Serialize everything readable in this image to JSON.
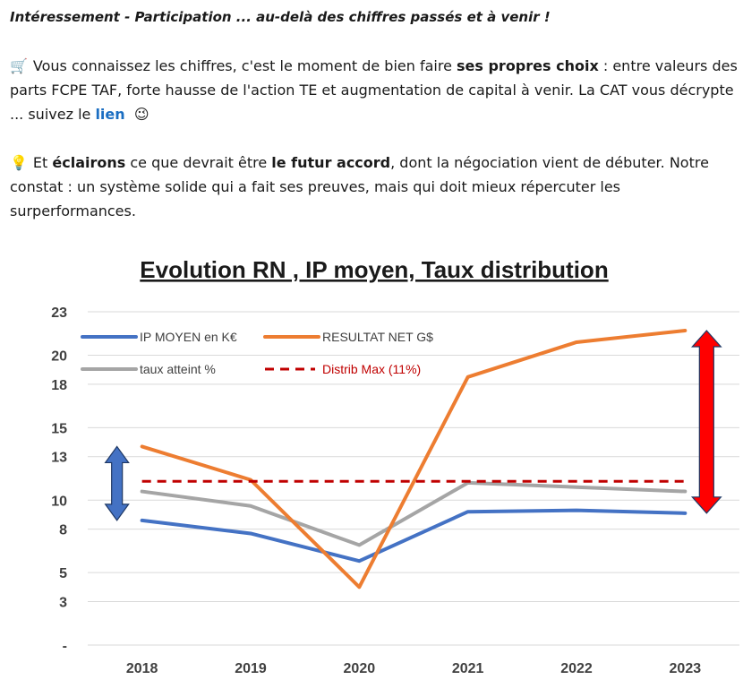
{
  "post": {
    "headline": "Intéressement - Participation ... au-delà des chiffres passés et à venir !",
    "p1": {
      "icon": "shopping-cart-icon",
      "emoji": "🛒",
      "t1": "Vous connaissez les chiffres, c'est le moment de bien faire ",
      "b1": "ses propres choix",
      "t2": " : entre valeurs des parts FCPE TAF, forte hausse de l'action TE et augmentation de capital à venir. La CAT vous décrypte ... suivez le ",
      "link": "lien",
      "smile_icon": "smiling-face-icon",
      "smile": "😉"
    },
    "p2": {
      "icon": "light-bulb-icon",
      "emoji": "💡",
      "t1": "Et ",
      "b1": "éclairons",
      "t2": " ce que devrait être ",
      "b2": "le futur accord",
      "t3": ", dont la négociation vient de débuter. Notre constat : un système solide qui a fait ses preuves, mais qui doit mieux répercuter les surperformances."
    }
  },
  "chart_data": {
    "type": "line",
    "title": "Evolution RN , IP moyen, Taux distribution",
    "categories": [
      "2018",
      "2019",
      "2020",
      "2021",
      "2022",
      "2023"
    ],
    "ylim": [
      0,
      23
    ],
    "yticks": [
      0,
      3,
      5,
      8,
      10,
      13,
      15,
      18,
      20,
      23
    ],
    "ytick_labels": [
      "-",
      "3",
      "5",
      "8",
      "10",
      "13",
      "15",
      "18",
      "20",
      "23"
    ],
    "grid": true,
    "legend_position": "top-left",
    "series": [
      {
        "name": "IP MOYEN en K€",
        "color": "#4472c4",
        "dash": false,
        "values": [
          8.6,
          7.7,
          5.8,
          9.2,
          9.3,
          9.1
        ]
      },
      {
        "name": "RESULTAT NET G$",
        "color": "#ed7d31",
        "dash": false,
        "values": [
          13.7,
          11.4,
          4.0,
          18.5,
          20.9,
          21.7
        ]
      },
      {
        "name": "taux atteint %",
        "color": "#a5a5a5",
        "dash": false,
        "values": [
          10.6,
          9.6,
          6.9,
          11.2,
          10.9,
          10.6
        ]
      },
      {
        "name": "Distrib Max (11%)",
        "color": "#c00000",
        "dash": true,
        "values": [
          11.3,
          11.3,
          11.3,
          11.3,
          11.3,
          11.3
        ]
      }
    ],
    "annotations": [
      {
        "type": "double-arrow",
        "color": "#4472c4",
        "x": "2018",
        "y_from": 8.6,
        "y_to": 13.7,
        "placement": "left"
      },
      {
        "type": "double-arrow",
        "color": "#ff0000",
        "x": "2023",
        "y_from": 9.1,
        "y_to": 21.7,
        "placement": "right"
      }
    ]
  }
}
